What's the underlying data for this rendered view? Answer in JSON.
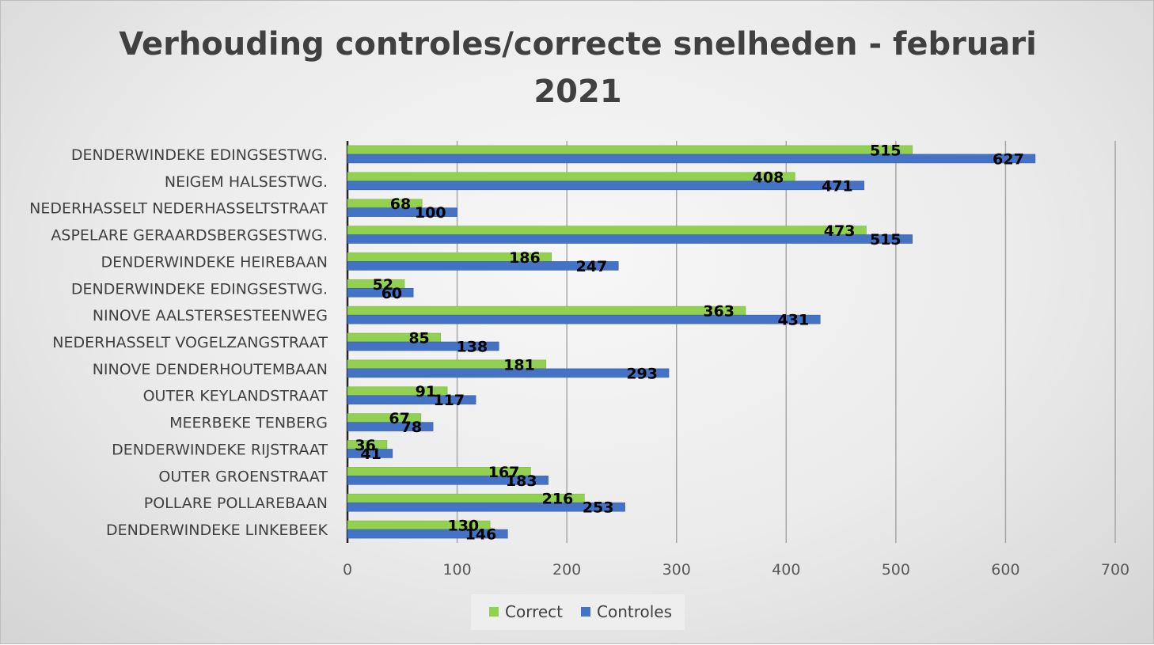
{
  "chart_data": {
    "type": "bar",
    "orientation": "horizontal",
    "title": "Verhouding controles/correcte snelheden - februari 2021",
    "title_lines": [
      "Verhouding controles/correcte snelheden - februari",
      "2021"
    ],
    "categories": [
      "DENDERWINDEKE EDINGSESTWG.",
      "NEIGEM HALSESTWG.",
      "NEDERHASSELT NEDERHASSELTSTRAAT",
      "ASPELARE GERAARDSBERGSESTWG.",
      "DENDERWINDEKE HEIREBAAN",
      "DENDERWINDEKE EDINGSESTWG.",
      "NINOVE AALSTERSESTEENWEG",
      "NEDERHASSELT VOGELZANGSTRAAT",
      "NINOVE DENDERHOUTEMBAAN",
      "OUTER KEYLANDSTRAAT",
      "MEERBEKE TENBERG",
      "DENDERWINDEKE RIJSTRAAT",
      "OUTER GROENSTRAAT",
      "POLLARE POLLAREBAAN",
      "DENDERWINDEKE LINKEBEEK"
    ],
    "series": [
      {
        "name": "Correct",
        "color": "#92d050",
        "values": [
          515,
          408,
          68,
          473,
          186,
          52,
          363,
          85,
          181,
          91,
          67,
          36,
          167,
          216,
          130
        ]
      },
      {
        "name": "Controles",
        "color": "#4472c4",
        "values": [
          627,
          471,
          100,
          515,
          247,
          60,
          431,
          138,
          293,
          117,
          78,
          41,
          183,
          253,
          146
        ]
      }
    ],
    "xlim": [
      0,
      700
    ],
    "xticks": [
      0,
      100,
      200,
      300,
      400,
      500,
      600,
      700
    ],
    "xlabel": "",
    "ylabel": "",
    "grid": true,
    "legend_position": "bottom",
    "data_labels": true
  }
}
